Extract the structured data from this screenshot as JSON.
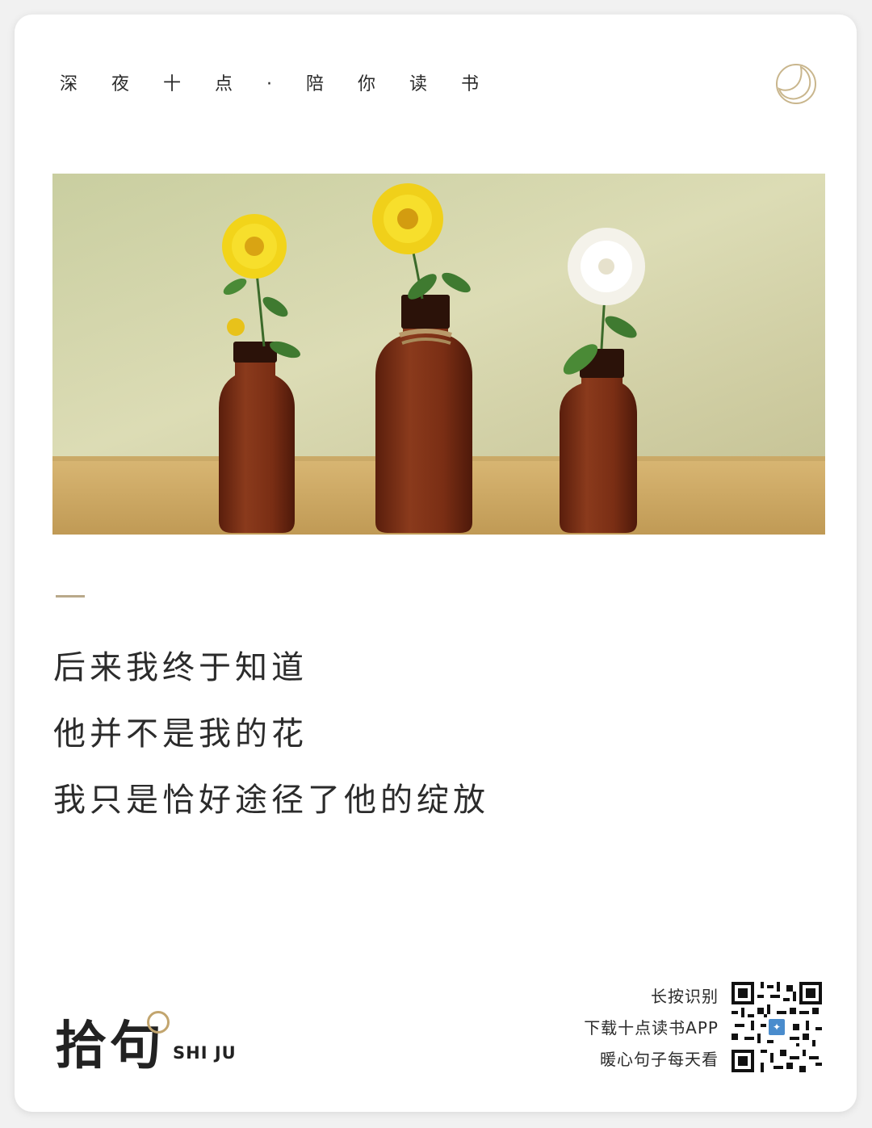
{
  "header": {
    "slogan": "深夜十点·陪你读书"
  },
  "icons": {
    "moon": "crescent-moon-icon",
    "qr_center": "app-logo-icon"
  },
  "quote": {
    "lines": [
      "后来我终于知道",
      "他并不是我的花",
      "我只是恰好途径了他的绽放"
    ]
  },
  "brand": {
    "name_cn": "拾句",
    "name_en": "SHI JU"
  },
  "cta": {
    "line1": "长按识别",
    "line2": "下载十点读书APP",
    "line3": "暖心句子每天看"
  },
  "colors": {
    "accent": "#b9a98a",
    "moon": "#c9b68d",
    "card": "#ffffff",
    "text": "#2b2b2b"
  }
}
